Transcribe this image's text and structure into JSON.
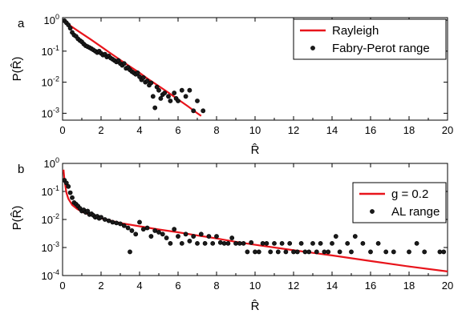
{
  "chart_data": [
    {
      "type": "scatter",
      "panel_label": "a",
      "xlabel": "R̂",
      "ylabel": "P(R̂)",
      "xlim": [
        0,
        20
      ],
      "ylim": [
        0.0006,
        1.2
      ],
      "xscale": "linear",
      "yscale": "log",
      "x_ticks": [
        0,
        2,
        4,
        6,
        8,
        10,
        12,
        14,
        16,
        18,
        20
      ],
      "y_ticks": [
        0.001,
        0.01,
        0.1,
        1
      ],
      "y_tick_labels": [
        "10^-3",
        "10^-2",
        "10^-1",
        "10^0"
      ],
      "grid": false,
      "legend_position": "top-right",
      "series": [
        {
          "name": "Rayleigh",
          "kind": "line",
          "color": "#e8141b",
          "x": [
            0,
            0.25,
            0.5,
            0.75,
            1,
            1.5,
            2,
            2.5,
            3,
            3.5,
            4,
            4.5,
            5,
            5.5,
            6,
            6.5,
            7,
            7.2
          ],
          "y": [
            1.0,
            0.78,
            0.6,
            0.47,
            0.37,
            0.23,
            0.14,
            0.085,
            0.052,
            0.032,
            0.02,
            0.012,
            0.0075,
            0.0046,
            0.0028,
            0.0017,
            0.001,
            0.00082
          ]
        },
        {
          "name": "Fabry-Perot range",
          "kind": "scatter",
          "color": "#1a1a1a",
          "x": [
            0.1,
            0.2,
            0.3,
            0.4,
            0.5,
            0.6,
            0.7,
            0.8,
            0.9,
            1.0,
            1.1,
            1.2,
            1.3,
            1.4,
            1.5,
            1.6,
            1.7,
            1.8,
            1.9,
            2.0,
            2.1,
            2.2,
            2.3,
            2.4,
            2.5,
            2.6,
            2.7,
            2.8,
            2.9,
            3.0,
            3.1,
            3.2,
            3.3,
            3.4,
            3.5,
            3.6,
            3.7,
            3.8,
            3.9,
            4.0,
            4.1,
            4.2,
            4.3,
            4.4,
            4.5,
            4.6,
            4.7,
            4.8,
            4.9,
            5.0,
            5.1,
            5.2,
            5.3,
            5.5,
            5.6,
            5.8,
            5.9,
            6.0,
            6.2,
            6.4,
            6.6,
            6.8,
            7.0,
            7.3
          ],
          "y": [
            0.95,
            0.82,
            0.7,
            0.55,
            0.4,
            0.33,
            0.3,
            0.25,
            0.22,
            0.2,
            0.17,
            0.15,
            0.14,
            0.13,
            0.12,
            0.11,
            0.1,
            0.09,
            0.1,
            0.085,
            0.075,
            0.08,
            0.065,
            0.07,
            0.06,
            0.055,
            0.05,
            0.045,
            0.05,
            0.04,
            0.035,
            0.04,
            0.028,
            0.03,
            0.025,
            0.022,
            0.02,
            0.018,
            0.02,
            0.015,
            0.012,
            0.014,
            0.01,
            0.011,
            0.008,
            0.0095,
            0.0035,
            0.0015,
            0.007,
            0.0055,
            0.003,
            0.004,
            0.0045,
            0.0035,
            0.0025,
            0.0045,
            0.003,
            0.0025,
            0.0055,
            0.0035,
            0.0055,
            0.0012,
            0.0025,
            0.0012
          ]
        }
      ]
    },
    {
      "type": "scatter",
      "panel_label": "b",
      "xlabel": "R̂",
      "ylabel": "P(R̂)",
      "xlim": [
        0,
        20
      ],
      "ylim": [
        0.0001,
        1
      ],
      "xscale": "linear",
      "yscale": "log",
      "x_ticks": [
        0,
        2,
        4,
        6,
        8,
        10,
        12,
        14,
        16,
        18,
        20
      ],
      "y_ticks": [
        0.0001,
        0.001,
        0.01,
        0.1,
        1
      ],
      "y_tick_labels": [
        "10^-4",
        "10^-3",
        "10^-2",
        "10^-1",
        "10^0"
      ],
      "grid": false,
      "legend_position": "top-right",
      "series": [
        {
          "name": "g = 0.2",
          "kind": "line",
          "color": "#e8141b",
          "x": [
            0.05,
            0.1,
            0.2,
            0.3,
            0.5,
            0.75,
            1,
            1.5,
            2,
            3,
            4,
            5,
            6,
            7,
            8,
            9,
            10,
            12,
            14,
            16,
            18,
            20
          ],
          "y": [
            0.6,
            0.25,
            0.09,
            0.055,
            0.033,
            0.024,
            0.019,
            0.014,
            0.011,
            0.0075,
            0.0057,
            0.0044,
            0.0035,
            0.0027,
            0.0021,
            0.0016,
            0.00125,
            0.0008,
            0.00052,
            0.00033,
            0.00021,
            0.00014
          ]
        },
        {
          "name": "AL range",
          "kind": "scatter",
          "color": "#1a1a1a",
          "x": [
            0.1,
            0.2,
            0.3,
            0.4,
            0.5,
            0.6,
            0.7,
            0.8,
            0.9,
            1.0,
            1.1,
            1.2,
            1.3,
            1.4,
            1.5,
            1.6,
            1.7,
            1.8,
            1.9,
            2.0,
            2.2,
            2.4,
            2.6,
            2.8,
            3.0,
            3.2,
            3.4,
            3.5,
            3.6,
            3.8,
            4.0,
            4.2,
            4.4,
            4.6,
            4.8,
            5.0,
            5.2,
            5.4,
            5.6,
            5.8,
            6.0,
            6.2,
            6.4,
            6.6,
            6.8,
            7.0,
            7.2,
            7.4,
            7.6,
            7.8,
            8.0,
            8.2,
            8.4,
            8.6,
            8.8,
            9.0,
            9.2,
            9.4,
            9.6,
            9.8,
            10.0,
            10.2,
            10.4,
            10.6,
            10.8,
            11.0,
            11.2,
            11.4,
            11.6,
            11.8,
            12.0,
            12.2,
            12.4,
            12.6,
            12.8,
            13.0,
            13.2,
            13.4,
            13.6,
            13.8,
            14.0,
            14.2,
            14.4,
            14.8,
            15.0,
            15.2,
            15.6,
            16.0,
            16.4,
            16.8,
            17.2,
            18.0,
            18.4,
            18.8,
            19.6,
            19.8
          ],
          "y": [
            0.25,
            0.2,
            0.15,
            0.09,
            0.06,
            0.04,
            0.035,
            0.03,
            0.025,
            0.02,
            0.022,
            0.018,
            0.02,
            0.015,
            0.016,
            0.014,
            0.012,
            0.013,
            0.011,
            0.012,
            0.01,
            0.009,
            0.008,
            0.0075,
            0.007,
            0.006,
            0.005,
            0.0007,
            0.004,
            0.003,
            0.008,
            0.0045,
            0.005,
            0.0025,
            0.004,
            0.0035,
            0.003,
            0.0022,
            0.0014,
            0.0045,
            0.0025,
            0.0014,
            0.003,
            0.0017,
            0.0025,
            0.0014,
            0.003,
            0.0014,
            0.0025,
            0.0014,
            0.0025,
            0.0015,
            0.0014,
            0.0014,
            0.0022,
            0.0014,
            0.0014,
            0.0014,
            0.0007,
            0.0015,
            0.0007,
            0.0007,
            0.0014,
            0.0014,
            0.0007,
            0.0014,
            0.0007,
            0.0014,
            0.0007,
            0.0014,
            0.0007,
            0.0007,
            0.0014,
            0.0007,
            0.0007,
            0.0014,
            0.0007,
            0.0014,
            0.0007,
            0.0007,
            0.0014,
            0.0025,
            0.0007,
            0.0014,
            0.0007,
            0.0025,
            0.0014,
            0.0007,
            0.0014,
            0.0007,
            0.0007,
            0.0007,
            0.0014,
            0.0007,
            0.0007,
            0.0007
          ]
        }
      ]
    }
  ]
}
